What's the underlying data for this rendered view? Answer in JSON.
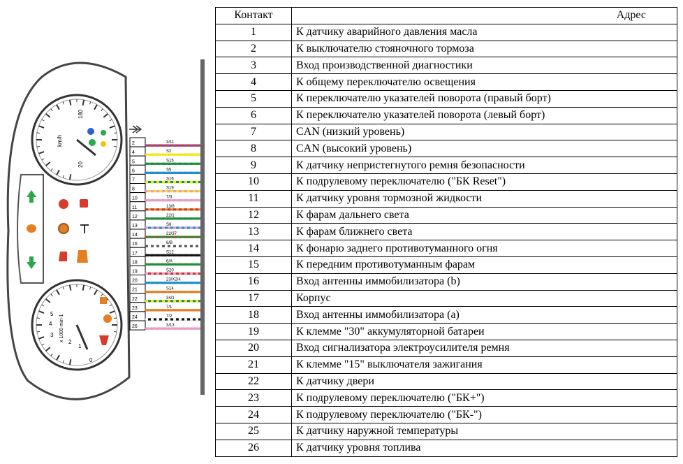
{
  "table": {
    "header": {
      "contact": "Контакт",
      "address": "Адрес"
    },
    "rows": [
      {
        "contact": "1",
        "address": "К датчику аварийного давления масла"
      },
      {
        "contact": "2",
        "address": "К выключателю стояночного тормоза"
      },
      {
        "contact": "3",
        "address": "Вход производственной диагностики"
      },
      {
        "contact": "4",
        "address": "К общему переключателю освещения"
      },
      {
        "contact": "5",
        "address": "К переключателю указателей поворота (правый борт)"
      },
      {
        "contact": "6",
        "address": "К переключателю указателей поворота (левый борт)"
      },
      {
        "contact": "7",
        "address": "CAN (низкий уровень)"
      },
      {
        "contact": "8",
        "address": "CAN (высокий уровень)"
      },
      {
        "contact": "9",
        "address": "К датчику непристегнутого ремня безопасности"
      },
      {
        "contact": "10",
        "address": "К подрулевому переключателю (\"БК Reset\")"
      },
      {
        "contact": "11",
        "address": "К датчику уровня тормозной жидкости"
      },
      {
        "contact": "12",
        "address": "К фарам дальнего света"
      },
      {
        "contact": "13",
        "address": "К фарам ближнего света"
      },
      {
        "contact": "14",
        "address": "К фонарю заднего противотуманного огня"
      },
      {
        "contact": "15",
        "address": "К передним противотуманным фарам"
      },
      {
        "contact": "16",
        "address": "Вход антенны иммобилизатора (b)"
      },
      {
        "contact": "17",
        "address": "Корпус"
      },
      {
        "contact": "18",
        "address": "Вход антенны иммобилизатора (a)"
      },
      {
        "contact": "19",
        "address": "К клемме \"30\" аккумуляторной батареи"
      },
      {
        "contact": "20",
        "address": "Вход сигнализатора электроусилителя ремня"
      },
      {
        "contact": "21",
        "address": "К клемме \"15\" выключателя зажигания"
      },
      {
        "contact": "22",
        "address": "К датчику двери"
      },
      {
        "contact": "23",
        "address": "К подрулевому переключателю (\"БК+\")"
      },
      {
        "contact": "24",
        "address": "К подрулевому переключателю (\"БК-\")"
      },
      {
        "contact": "25",
        "address": "К датчику наружной температуры"
      },
      {
        "contact": "26",
        "address": "К датчику уровня топлива"
      }
    ]
  },
  "cluster": {
    "speedometer": {
      "unit": "km/h",
      "ticks": [
        "180",
        "20"
      ]
    },
    "tachometer": {
      "unit": "x 1000 min-1",
      "ticks": [
        "1",
        "2",
        "3",
        "4",
        "5",
        "0"
      ]
    }
  },
  "connector": {
    "pins": [
      {
        "num": "2",
        "wire": "3/11",
        "colors": [
          "#c0392b",
          "#8e44ad"
        ]
      },
      {
        "num": "4",
        "wire": "S2",
        "colors": [
          "#f1e61a",
          "#f1e61a"
        ]
      },
      {
        "num": "5",
        "wire": "S15",
        "colors": [
          "#1f8f3a",
          "#1f8f3a"
        ]
      },
      {
        "num": "6",
        "wire": "S5",
        "colors": [
          "#1f8fd0",
          "#1f8fd0"
        ]
      },
      {
        "num": "7",
        "wire": "S16",
        "colors": [
          "#1f8f3a",
          "#f1e61a"
        ]
      },
      {
        "num": "8",
        "wire": "S19",
        "colors": [
          "#f1e61a",
          "#e89bc8"
        ]
      },
      {
        "num": "10",
        "wire": "7/3",
        "colors": [
          "#e89bc8",
          "#e89bc8"
        ]
      },
      {
        "num": "11",
        "wire": "13/8",
        "colors": [
          "#e67e22",
          "#c0392b"
        ]
      },
      {
        "num": "12",
        "wire": "22/1",
        "colors": [
          "#1f8f3a",
          "#1f8f3a"
        ]
      },
      {
        "num": "13",
        "wire": "S6",
        "colors": [
          "#1f8fd0",
          "#e89bc8"
        ]
      },
      {
        "num": "14",
        "wire": "22/37",
        "colors": [
          "#1f8f3a",
          "#8b5a2b"
        ]
      },
      {
        "num": "16",
        "wire": "6/B",
        "colors": [
          "#ffffff",
          "#555555"
        ]
      },
      {
        "num": "17",
        "wire": "S12",
        "colors": [
          "#111111",
          "#111111"
        ]
      },
      {
        "num": "18",
        "wire": "6/A",
        "colors": [
          "#1f8f3a",
          "#1f8f3a"
        ]
      },
      {
        "num": "19",
        "wire": "S20",
        "colors": [
          "#c0392b",
          "#e89bc8"
        ]
      },
      {
        "num": "20",
        "wire": "23/X2/4",
        "colors": [
          "#1f8fd0",
          "#1f8fd0"
        ]
      },
      {
        "num": "21",
        "wire": "S14",
        "colors": [
          "#e67e22",
          "#e67e22"
        ]
      },
      {
        "num": "22",
        "wire": "34/1",
        "colors": [
          "#1f8f3a",
          "#f1e61a"
        ]
      },
      {
        "num": "23",
        "wire": "7/1",
        "colors": [
          "#e67e22",
          "#e67e22"
        ]
      },
      {
        "num": "24",
        "wire": "7/2",
        "colors": [
          "#111111",
          "#ffffff"
        ]
      },
      {
        "num": "26",
        "wire": "3/13",
        "colors": [
          "#e89bc8",
          "#e89bc8"
        ]
      }
    ]
  }
}
